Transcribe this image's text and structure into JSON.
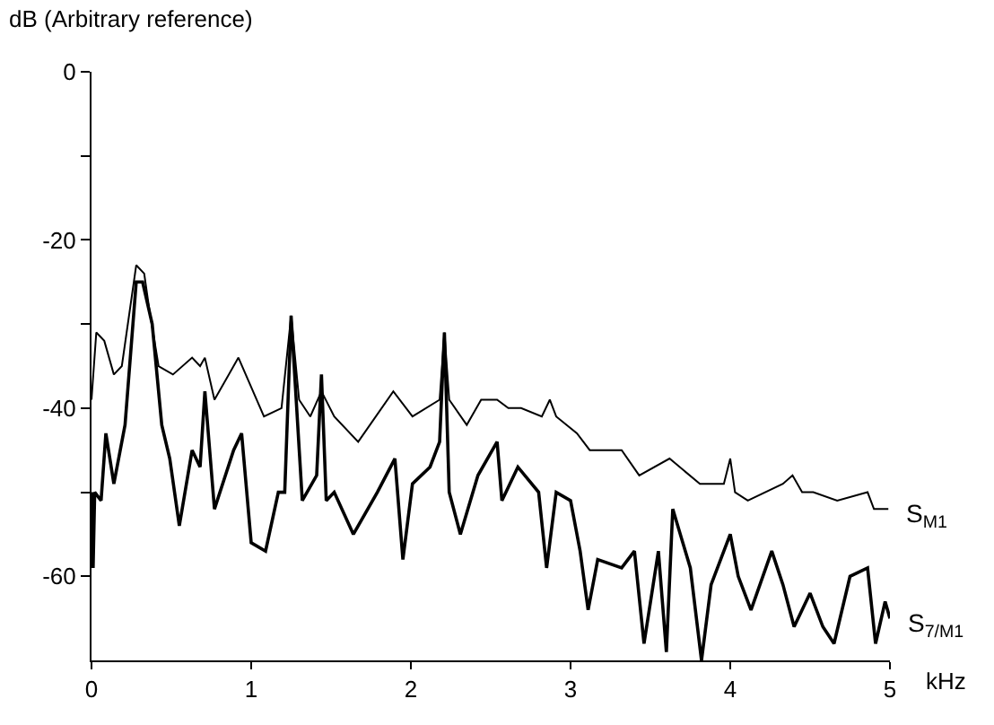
{
  "chart_data": {
    "type": "line",
    "ylabel": "dB (Arbitrary reference)",
    "xlabel": "kHz",
    "xlim": [
      0,
      5
    ],
    "xticks": [
      0,
      1,
      2,
      3,
      4,
      5
    ],
    "ylim": [
      -70,
      0
    ],
    "yticks": [
      0,
      {
        "value": -10,
        "label": null
      },
      -20,
      {
        "value": -30,
        "label": null
      },
      -40,
      {
        "value": -50,
        "label": null
      },
      -60
    ],
    "legend": false,
    "marker": "none",
    "line_style": "solid",
    "series": [
      {
        "name": "S$_{M1}$",
        "color": "#000000",
        "x": [
          0,
          0.03,
          0.08,
          0.14,
          0.19,
          0.28,
          0.33,
          0.36,
          0.42,
          0.51,
          0.63,
          0.68,
          0.71,
          0.77,
          0.92,
          1.08,
          1.19,
          1.25,
          1.3,
          1.37,
          1.44,
          1.52,
          1.67,
          1.89,
          2.01,
          2.18,
          2.21,
          2.24,
          2.35,
          2.44,
          2.54,
          2.61,
          2.69,
          2.82,
          2.87,
          2.91,
          3.04,
          3.12,
          3.32,
          3.43,
          3.62,
          3.81,
          3.96,
          4.0,
          4.03,
          4.11,
          4.33,
          4.39,
          4.45,
          4.52,
          4.67,
          4.86,
          4.9,
          4.99
        ],
        "values": [
          -39,
          -31,
          -32,
          -36,
          -35,
          -23,
          -24,
          -28,
          -35,
          -36,
          -34,
          -35,
          -34,
          -39,
          -34,
          -41,
          -40,
          -29,
          -39,
          -41,
          -38,
          -41,
          -44,
          -38,
          -41,
          -39,
          -31,
          -39,
          -42,
          -39,
          -39,
          -40,
          -40,
          -41,
          -39,
          -41,
          -43,
          -45,
          -45,
          -48,
          -46,
          -49,
          -49,
          -46,
          -50,
          -51,
          -49,
          -48,
          -50,
          -50,
          -51,
          -50,
          -52,
          -52
        ]
      },
      {
        "name": "S$_{7/M1}$",
        "color": "#000000",
        "x": [
          0,
          0.01,
          0.02,
          0.06,
          0.09,
          0.14,
          0.21,
          0.28,
          0.32,
          0.38,
          0.44,
          0.49,
          0.55,
          0.63,
          0.68,
          0.71,
          0.77,
          0.89,
          0.94,
          1.0,
          1.09,
          1.17,
          1.21,
          1.25,
          1.32,
          1.41,
          1.44,
          1.47,
          1.52,
          1.64,
          1.79,
          1.9,
          1.95,
          2.01,
          2.12,
          2.18,
          2.21,
          2.24,
          2.31,
          2.42,
          2.54,
          2.57,
          2.67,
          2.8,
          2.85,
          2.91,
          3.0,
          3.06,
          3.11,
          3.17,
          3.32,
          3.4,
          3.46,
          3.55,
          3.6,
          3.64,
          3.75,
          3.82,
          3.88,
          4.0,
          4.05,
          4.13,
          4.26,
          4.33,
          4.4,
          4.5,
          4.58,
          4.65,
          4.75,
          4.86,
          4.91,
          4.97,
          5.0
        ],
        "values": [
          -50,
          -59,
          -50,
          -51,
          -43,
          -49,
          -42,
          -25,
          -25,
          -30,
          -42,
          -46,
          -54,
          -45,
          -47,
          -38,
          -52,
          -45,
          -43,
          -56,
          -57,
          -50,
          -50,
          -29,
          -51,
          -48,
          -36,
          -51,
          -50,
          -55,
          -50,
          -46,
          -58,
          -49,
          -47,
          -44,
          -31,
          -50,
          -55,
          -48,
          -44,
          -51,
          -47,
          -50,
          -59,
          -50,
          -51,
          -57,
          -64,
          -58,
          -59,
          -57,
          -68,
          -57,
          -69,
          -52,
          -59,
          -70,
          -61,
          -55,
          -60,
          -64,
          -57,
          -61,
          -66,
          -62,
          -66,
          -68,
          -60,
          -59,
          -68,
          -63,
          -65
        ]
      }
    ]
  }
}
